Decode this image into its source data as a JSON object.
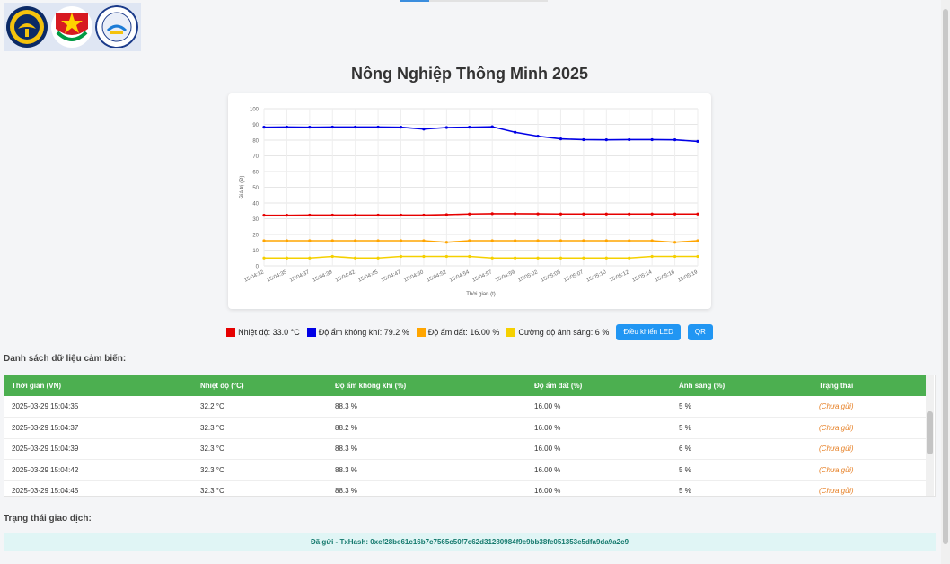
{
  "page": {
    "title": "Nông Nghiệp Thông Minh 2025",
    "colors": {
      "temperature": "#e60000",
      "air_humidity": "#0000e6",
      "soil_moisture": "#ffa500",
      "light": "#f5d000",
      "header_green": "#4caf50",
      "button_blue": "#2196f3"
    }
  },
  "logos": [
    {
      "name": "university-emblem-icon"
    },
    {
      "name": "youth-union-emblem-icon"
    },
    {
      "name": "faculty-emblem-icon"
    }
  ],
  "chart_data": {
    "type": "line",
    "title": "",
    "xlabel": "Thời gian (t)",
    "ylabel": "Giá trị (Đ)",
    "ylim": [
      0,
      100
    ],
    "yticks": [
      0,
      10,
      20,
      30,
      40,
      50,
      60,
      70,
      80,
      90,
      100
    ],
    "grid": true,
    "x_tick_labels": [
      "15:04:32",
      "15:04:35",
      "15:04:37",
      "15:04:39",
      "15:04:42",
      "15:04:45",
      "15:04:47",
      "15:04:50",
      "15:04:52",
      "15:04:54",
      "15:04:57",
      "15:04:59",
      "15:05:02",
      "15:05:05",
      "15:05:07",
      "15:05:10",
      "15:05:12",
      "15:05:14",
      "15:05:16",
      "15:05:19"
    ],
    "series": [
      {
        "key": "air",
        "color": "#0000e6",
        "values": [
          88.2,
          88.3,
          88.2,
          88.3,
          88.3,
          88.3,
          88.2,
          87.0,
          88.0,
          88.2,
          88.5,
          85.0,
          82.5,
          80.8,
          80.3,
          80.2,
          80.3,
          80.3,
          80.2,
          79.2
        ]
      },
      {
        "key": "temp",
        "color": "#e60000",
        "values": [
          32.2,
          32.2,
          32.3,
          32.3,
          32.3,
          32.3,
          32.3,
          32.3,
          32.6,
          33.0,
          33.2,
          33.2,
          33.1,
          33.0,
          33.0,
          33.0,
          33.0,
          33.0,
          33.0,
          33.0
        ]
      },
      {
        "key": "soil",
        "color": "#ffa500",
        "values": [
          16,
          16,
          16,
          16,
          16,
          16,
          16,
          16,
          15,
          16,
          16,
          16,
          16,
          16,
          16,
          16,
          16,
          16,
          15,
          16
        ]
      },
      {
        "key": "light",
        "color": "#f5d000",
        "values": [
          5,
          5,
          5,
          6,
          5,
          5,
          6,
          6,
          6,
          6,
          5,
          5,
          5,
          5,
          5,
          5,
          5,
          6,
          6,
          6
        ]
      }
    ]
  },
  "legend": {
    "temp": "Nhiệt độ: 33.0 °C",
    "air": "Độ ẩm không khí: 79.2 %",
    "soil": "Độ ẩm đất: 16.00 %",
    "light": "Cường độ ánh sáng: 6 %"
  },
  "buttons": {
    "led": "Điều khiển LED",
    "qr": "QR"
  },
  "sensor_section": {
    "label": "Danh sách dữ liệu cảm biến:",
    "columns": [
      "Thời gian (VN)",
      "Nhiệt độ (°C)",
      "Độ ẩm không khí (%)",
      "Độ ẩm đất (%)",
      "Ánh sáng (%)",
      "Trạng thái"
    ],
    "rows": [
      [
        "2025-03-29 15:04:35",
        "32.2 °C",
        "88.3 %",
        "16.00 %",
        "5 %",
        "(Chưa gửi)"
      ],
      [
        "2025-03-29 15:04:37",
        "32.3 °C",
        "88.2 %",
        "16.00 %",
        "5 %",
        "(Chưa gửi)"
      ],
      [
        "2025-03-29 15:04:39",
        "32.3 °C",
        "88.3 %",
        "16.00 %",
        "6 %",
        "(Chưa gửi)"
      ],
      [
        "2025-03-29 15:04:42",
        "32.3 °C",
        "88.3 %",
        "16.00 %",
        "5 %",
        "(Chưa gửi)"
      ],
      [
        "2025-03-29 15:04:45",
        "32.3 °C",
        "88.3 %",
        "16.00 %",
        "5 %",
        "(Chưa gửi)"
      ]
    ]
  },
  "tx_section": {
    "label": "Trạng thái giao dịch:",
    "status": "Đã gửi - TxHash: 0xef28be61c16b7c7565c50f7c62d31280984f9e9bb38fe051353e5dfa9da9a2c9"
  }
}
